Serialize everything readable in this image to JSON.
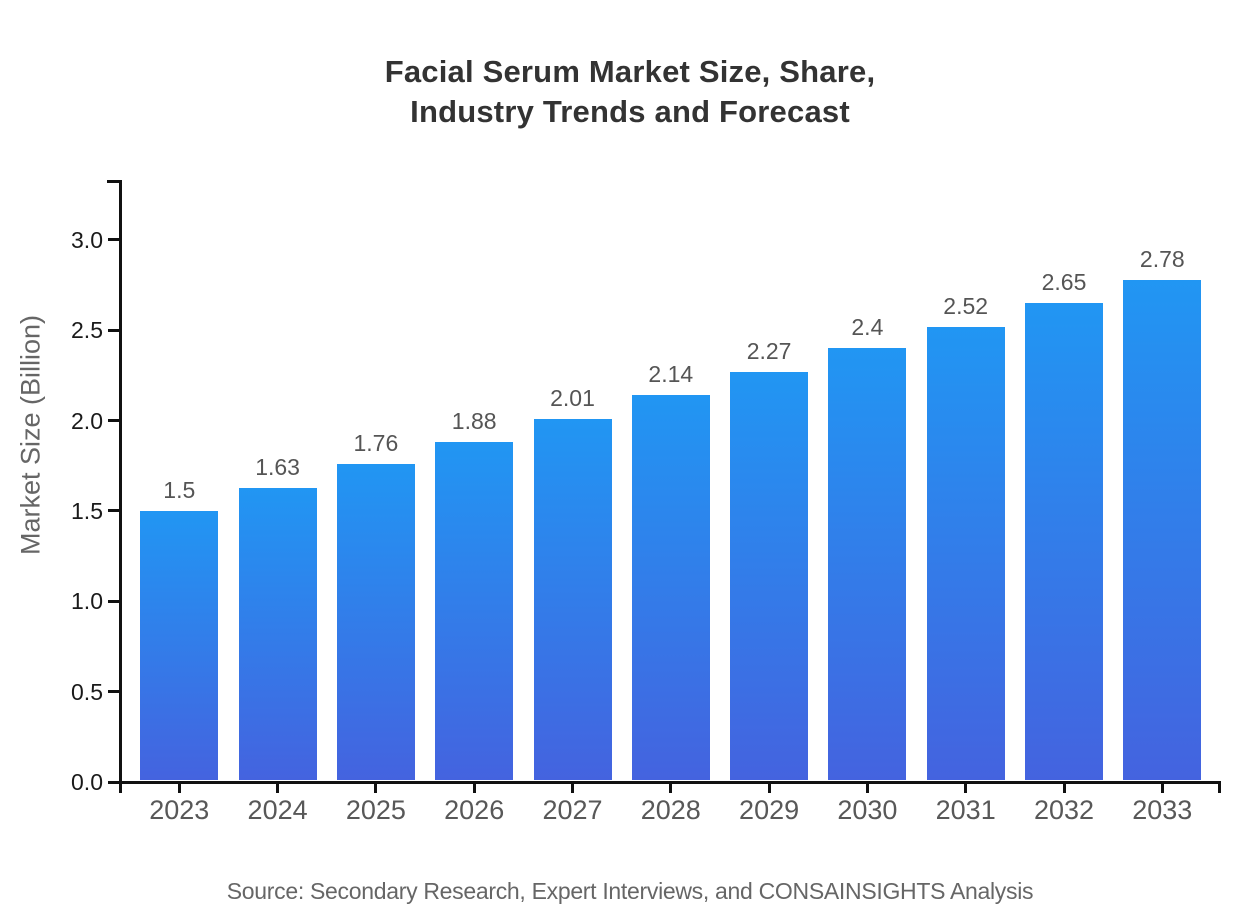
{
  "title": {
    "line1": "Facial Serum Market Size, Share,",
    "line2": "Industry Trends and Forecast"
  },
  "axes": {
    "y_label": "Market Size (Billion)",
    "y_ticks": [
      "0.0",
      "0.5",
      "1.0",
      "1.5",
      "2.0",
      "2.5",
      "3.0"
    ]
  },
  "source": "Source: Secondary Research, Expert Interviews, and CONSAINSIGHTS Analysis",
  "colors": {
    "bar_top": "#2196f3",
    "bar_bottom": "#4463df",
    "axis": "#111111",
    "title_text": "#333333",
    "value_label_text": "#555555",
    "year_label_text": "#585858",
    "y_tick_text": "#1a1a1a",
    "muted_text": "#666666"
  },
  "chart_data": {
    "type": "bar",
    "categories": [
      "2023",
      "2024",
      "2025",
      "2026",
      "2027",
      "2028",
      "2029",
      "2030",
      "2031",
      "2032",
      "2033"
    ],
    "values": [
      1.5,
      1.63,
      1.76,
      1.88,
      2.01,
      2.14,
      2.27,
      2.4,
      2.52,
      2.65,
      2.78
    ],
    "title": "Facial Serum Market Size, Share, Industry Trends and Forecast",
    "xlabel": "",
    "ylabel": "Market Size (Billion)",
    "ylim": [
      0,
      3.0
    ],
    "y_tick_step": 0.5,
    "grid": false,
    "legend": false,
    "data_labels": true,
    "footnote": "Source: Secondary Research, Expert Interviews, and CONSAINSIGHTS Analysis"
  }
}
